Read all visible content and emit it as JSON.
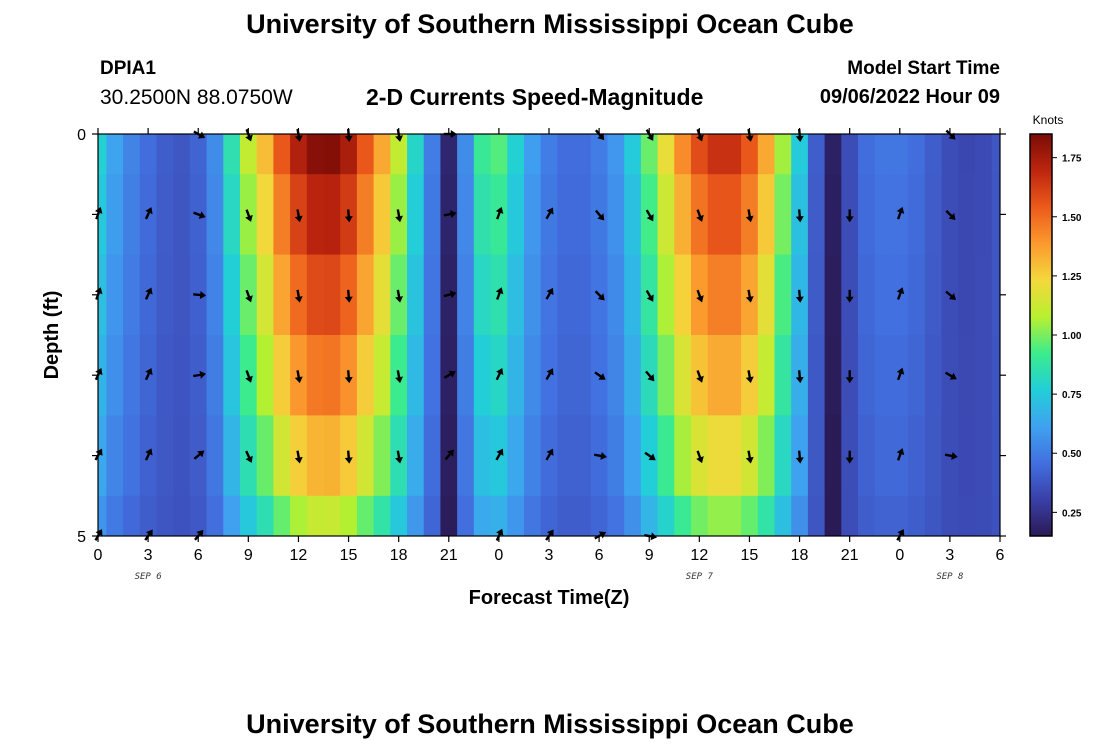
{
  "header": {
    "title": "University of Southern Mississippi Ocean Cube",
    "station": "DPIA1",
    "coordinates": "30.2500N  88.0750W",
    "subtitle": "2-D Currents Speed-Magnitude",
    "model_start_label": "Model Start Time",
    "model_start_value": "09/06/2022 Hour 09"
  },
  "footer": {
    "title": "University of Southern Mississippi Ocean Cube"
  },
  "chart_data": {
    "type": "heatmap",
    "title": "2-D Currents Speed-Magnitude",
    "xlabel": "Forecast Time(Z)",
    "ylabel": "Depth (ft)",
    "x_tick_labels": [
      "0",
      "3",
      "6",
      "9",
      "12",
      "15",
      "18",
      "21",
      "0",
      "3",
      "6",
      "9",
      "12",
      "15",
      "18",
      "21",
      "0",
      "3",
      "6"
    ],
    "x_hours": [
      0,
      54
    ],
    "date_labels": [
      {
        "label": "SEP 6",
        "hour": 3
      },
      {
        "label": "SEP 7",
        "hour": 36
      },
      {
        "label": "SEP 8",
        "hour": 51
      }
    ],
    "y_tick_labels": [
      "0",
      "5"
    ],
    "ylim": [
      0,
      5
    ],
    "colorbar": {
      "label": "Knots",
      "ticks": [
        "0.25",
        "0.50",
        "0.75",
        "1.00",
        "1.25",
        "1.50",
        "1.75"
      ],
      "range": [
        0.15,
        1.85
      ],
      "colors": [
        "#2a1a55",
        "#3a3fa8",
        "#4270e0",
        "#3fa2f0",
        "#22cfd8",
        "#3cec8c",
        "#b8f02f",
        "#f4d83c",
        "#fb9a2e",
        "#ec5a1b",
        "#bd250f",
        "#7a0c06"
      ]
    },
    "depth_rows": [
      0,
      1,
      2,
      3,
      4,
      5
    ],
    "speed_profile_surface": [
      {
        "hour": 0,
        "knots": 0.78
      },
      {
        "hour": 1,
        "knots": 0.62
      },
      {
        "hour": 2,
        "knots": 0.52
      },
      {
        "hour": 3,
        "knots": 0.45
      },
      {
        "hour": 4,
        "knots": 0.4
      },
      {
        "hour": 5,
        "knots": 0.38
      },
      {
        "hour": 6,
        "knots": 0.42
      },
      {
        "hour": 7,
        "knots": 0.55
      },
      {
        "hour": 8,
        "knots": 0.85
      },
      {
        "hour": 9,
        "knots": 1.1
      },
      {
        "hour": 10,
        "knots": 1.3
      },
      {
        "hour": 11,
        "knots": 1.55
      },
      {
        "hour": 12,
        "knots": 1.72
      },
      {
        "hour": 13,
        "knots": 1.82
      },
      {
        "hour": 14,
        "knots": 1.83
      },
      {
        "hour": 15,
        "knots": 1.74
      },
      {
        "hour": 16,
        "knots": 1.55
      },
      {
        "hour": 17,
        "knots": 1.35
      },
      {
        "hour": 18,
        "knots": 1.1
      },
      {
        "hour": 19,
        "knots": 0.8
      },
      {
        "hour": 20,
        "knots": 0.5
      },
      {
        "hour": 21,
        "knots": 0.2
      },
      {
        "hour": 22,
        "knots": 0.55
      },
      {
        "hour": 23,
        "knots": 0.9
      },
      {
        "hour": 24,
        "knots": 0.95
      },
      {
        "hour": 25,
        "knots": 0.78
      },
      {
        "hour": 26,
        "knots": 0.6
      },
      {
        "hour": 27,
        "knots": 0.5
      },
      {
        "hour": 28,
        "knots": 0.45
      },
      {
        "hour": 29,
        "knots": 0.45
      },
      {
        "hour": 30,
        "knots": 0.5
      },
      {
        "hour": 31,
        "knots": 0.58
      },
      {
        "hour": 32,
        "knots": 0.75
      },
      {
        "hour": 33,
        "knots": 0.98
      },
      {
        "hour": 34,
        "knots": 1.2
      },
      {
        "hour": 35,
        "knots": 1.42
      },
      {
        "hour": 36,
        "knots": 1.58
      },
      {
        "hour": 37,
        "knots": 1.66
      },
      {
        "hour": 38,
        "knots": 1.66
      },
      {
        "hour": 39,
        "knots": 1.55
      },
      {
        "hour": 40,
        "knots": 1.35
      },
      {
        "hour": 41,
        "knots": 1.05
      },
      {
        "hour": 42,
        "knots": 0.75
      },
      {
        "hour": 43,
        "knots": 0.4
      },
      {
        "hour": 44,
        "knots": 0.18
      },
      {
        "hour": 45,
        "knots": 0.35
      },
      {
        "hour": 46,
        "knots": 0.45
      },
      {
        "hour": 47,
        "knots": 0.48
      },
      {
        "hour": 48,
        "knots": 0.48
      },
      {
        "hour": 49,
        "knots": 0.45
      },
      {
        "hour": 50,
        "knots": 0.4
      },
      {
        "hour": 51,
        "knots": 0.35
      },
      {
        "hour": 52,
        "knots": 0.33
      },
      {
        "hour": 53,
        "knots": 0.34
      },
      {
        "hour": 54,
        "knots": 0.38
      }
    ],
    "depth_factors": [
      1.0,
      0.92,
      0.84,
      0.76,
      0.66,
      0.52
    ],
    "arrows": [
      {
        "hour": 0,
        "dirs": [
          null,
          20,
          20,
          25,
          30,
          30
        ]
      },
      {
        "hour": 3,
        "dirs": [
          null,
          25,
          25,
          25,
          25,
          35
        ]
      },
      {
        "hour": 6,
        "dirs": [
          120,
          110,
          95,
          80,
          50,
          40
        ]
      },
      {
        "hour": 9,
        "dirs": [
          160,
          160,
          160,
          160,
          155,
          null
        ]
      },
      {
        "hour": 12,
        "dirs": [
          170,
          170,
          170,
          170,
          170,
          null
        ]
      },
      {
        "hour": 15,
        "dirs": [
          175,
          175,
          175,
          175,
          175,
          null
        ]
      },
      {
        "hour": 18,
        "dirs": [
          170,
          170,
          170,
          170,
          170,
          null
        ]
      },
      {
        "hour": 21,
        "dirs": [
          90,
          80,
          75,
          60,
          40,
          null
        ]
      },
      {
        "hour": 24,
        "dirs": [
          null,
          20,
          20,
          25,
          30,
          25
        ]
      },
      {
        "hour": 27,
        "dirs": [
          null,
          30,
          30,
          30,
          30,
          35
        ]
      },
      {
        "hour": 30,
        "dirs": [
          140,
          140,
          135,
          125,
          100,
          60
        ]
      },
      {
        "hour": 33,
        "dirs": [
          150,
          150,
          150,
          140,
          125,
          100
        ]
      },
      {
        "hour": 36,
        "dirs": [
          160,
          160,
          160,
          160,
          160,
          null
        ]
      },
      {
        "hour": 39,
        "dirs": [
          170,
          170,
          170,
          170,
          170,
          null
        ]
      },
      {
        "hour": 42,
        "dirs": [
          175,
          175,
          175,
          175,
          175,
          null
        ]
      },
      {
        "hour": 45,
        "dirs": [
          null,
          180,
          180,
          180,
          180,
          null
        ]
      },
      {
        "hour": 48,
        "dirs": [
          null,
          20,
          20,
          20,
          20,
          30
        ]
      },
      {
        "hour": 51,
        "dirs": [
          135,
          135,
          130,
          120,
          100,
          null
        ]
      }
    ]
  }
}
